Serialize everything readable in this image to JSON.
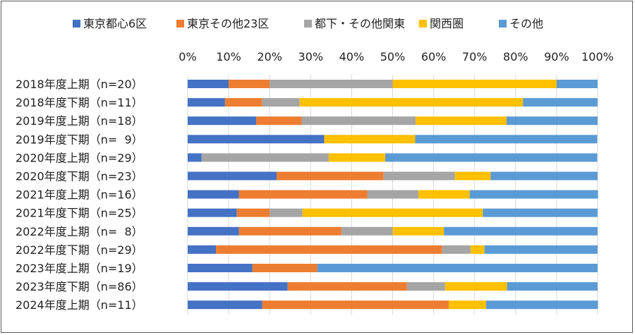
{
  "chart_data": {
    "type": "bar",
    "orientation": "horizontal",
    "stacked": "percent",
    "xlim": [
      0,
      100
    ],
    "xticks": [
      "0%",
      "10%",
      "20%",
      "30%",
      "40%",
      "50%",
      "60%",
      "70%",
      "80%",
      "90%",
      "100%"
    ],
    "legend_position": "top",
    "grid": true,
    "categories": [
      "2018年度上期（n=20）",
      "2018年度下期（n=11）",
      "2019年度上期（n=18）",
      "2019年度下期（n=  9）",
      "2020年度上期（n=29）",
      "2020年度下期（n=23）",
      "2021年度上期（n=16）",
      "2021年度下期（n=25）",
      "2022年度上期（n=  8）",
      "2022年度下期（n=29）",
      "2023年度上期（n=19）",
      "2023年度下期（n=86）",
      "2024年度上期（n=11）"
    ],
    "series": [
      {
        "name": "東京都心6区",
        "color": "#4472c4",
        "values": [
          10.0,
          9.1,
          16.7,
          33.3,
          3.4,
          21.7,
          12.5,
          12.0,
          12.5,
          6.9,
          15.8,
          24.4,
          18.2
        ]
      },
      {
        "name": "東京その他23区",
        "color": "#ed7d31",
        "values": [
          10.0,
          9.1,
          11.1,
          0.0,
          0.0,
          26.1,
          31.3,
          8.0,
          25.0,
          55.2,
          15.8,
          29.1,
          45.5
        ]
      },
      {
        "name": "都下・その他関東",
        "color": "#a5a5a5",
        "values": [
          30.0,
          9.1,
          27.8,
          0.0,
          31.0,
          17.4,
          12.5,
          8.0,
          12.5,
          6.9,
          0.0,
          9.3,
          0.0
        ]
      },
      {
        "name": "関西圏",
        "color": "#ffc000",
        "values": [
          40.0,
          54.5,
          22.2,
          22.2,
          13.8,
          8.7,
          12.5,
          44.0,
          12.5,
          3.4,
          0.0,
          15.1,
          9.1
        ]
      },
      {
        "name": "その他",
        "color": "#5b9bd5",
        "values": [
          10.0,
          18.2,
          22.2,
          44.4,
          51.7,
          26.1,
          31.3,
          28.0,
          37.5,
          27.6,
          68.4,
          22.1,
          27.3
        ]
      }
    ]
  }
}
